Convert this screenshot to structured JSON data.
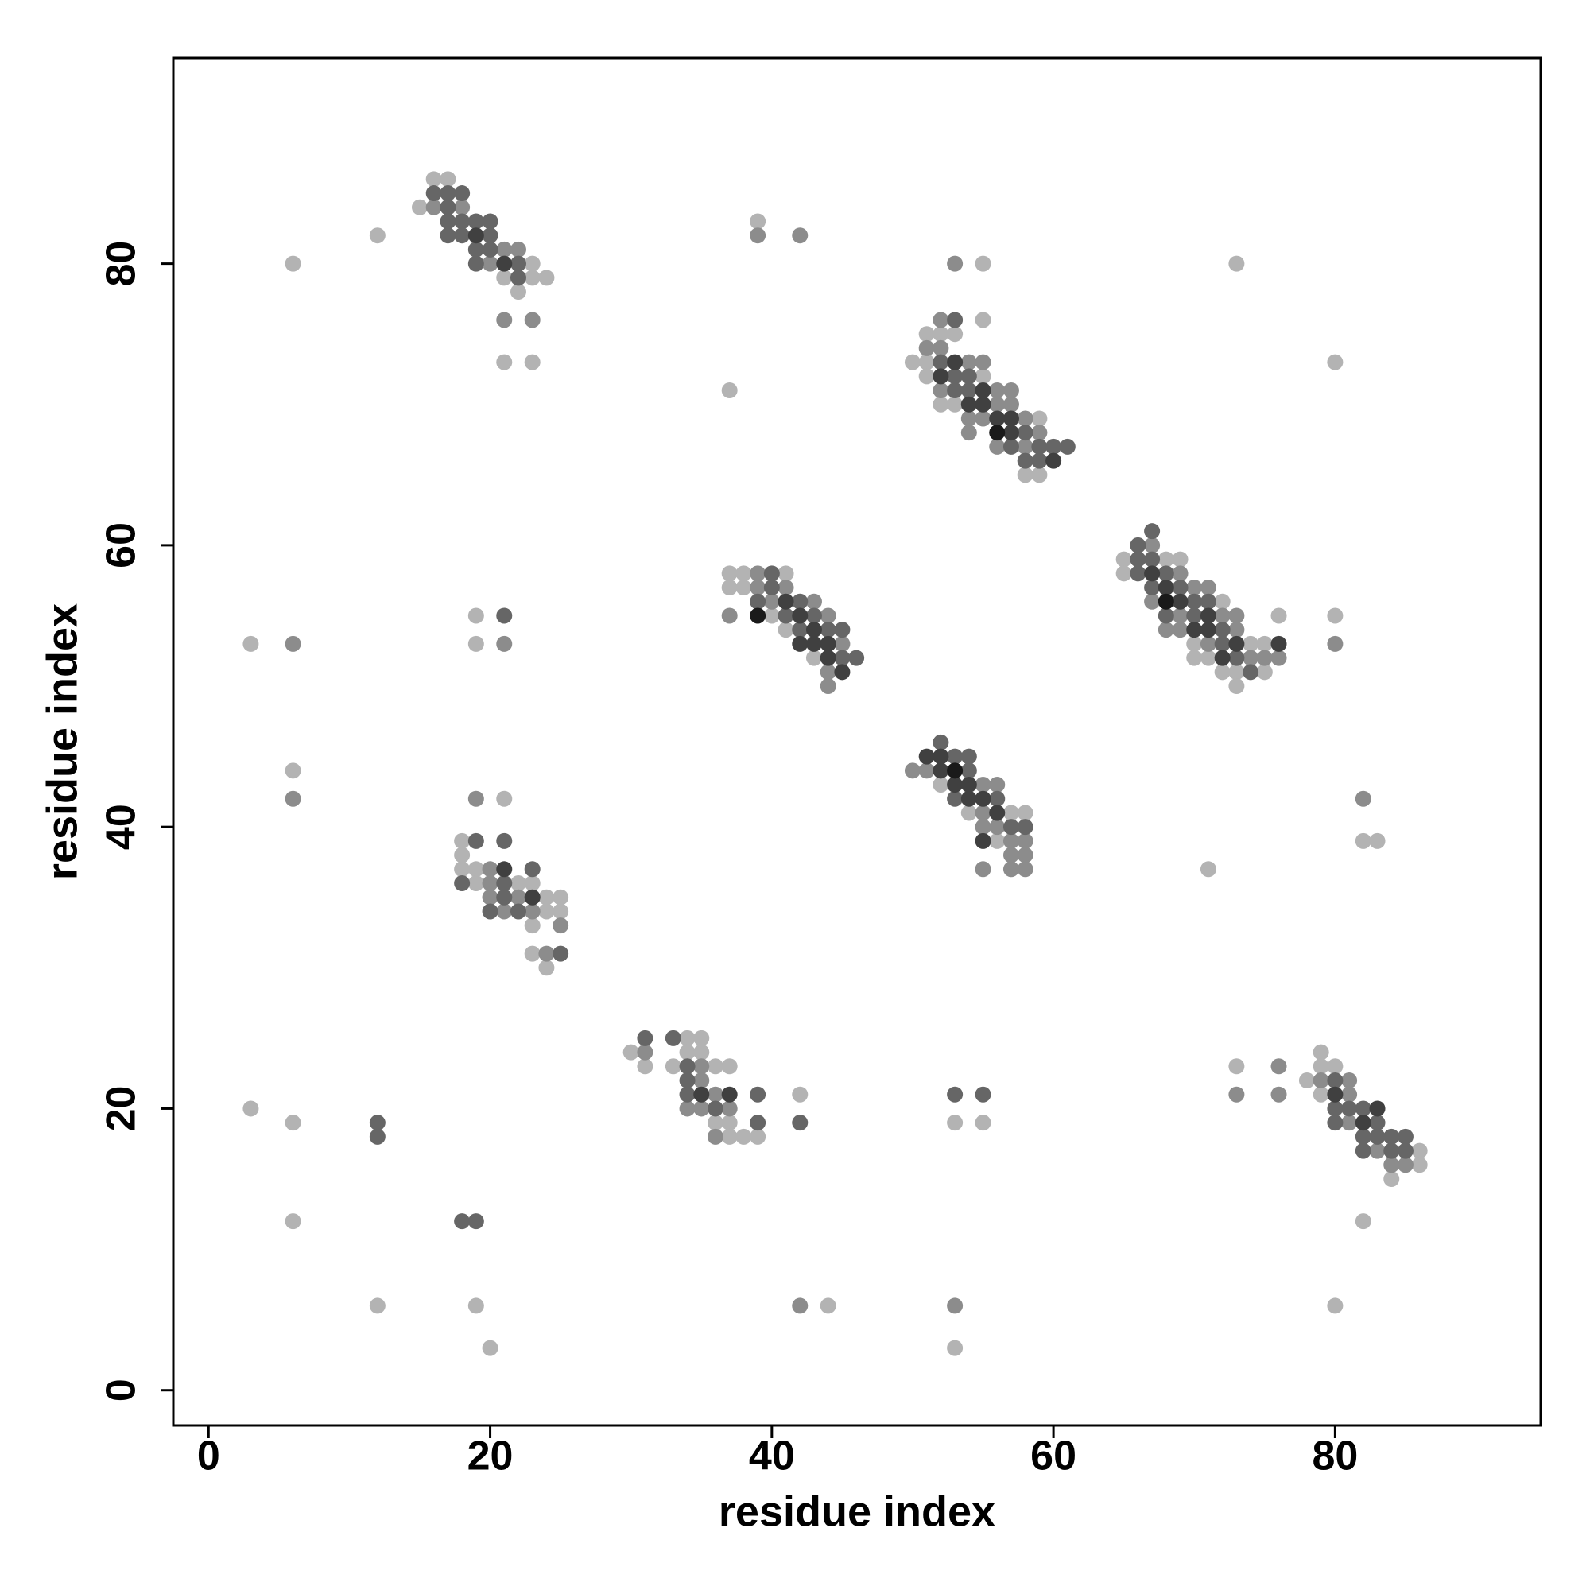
{
  "chart_data": {
    "type": "scatter",
    "x_label": "residue index",
    "y_label": "residue index",
    "xlim": [
      -2.5,
      94.6
    ],
    "ylim": [
      -2.5,
      94.6
    ],
    "xticks": [
      0,
      20,
      40,
      60,
      80
    ],
    "yticks": [
      0,
      20,
      40,
      60,
      80
    ],
    "series": [
      {
        "color": "#b3b3b3",
        "x": [
          6,
          12,
          16,
          17,
          15,
          23,
          21,
          23,
          24,
          22,
          21,
          23,
          39,
          37,
          51,
          52,
          53,
          50,
          51,
          51,
          55,
          52,
          53,
          59,
          58,
          59,
          55,
          55,
          73,
          80,
          65,
          68,
          69,
          65,
          72,
          70,
          74,
          75,
          70,
          71,
          72,
          73,
          75,
          73,
          76,
          80,
          37,
          38,
          41,
          37,
          38,
          40,
          41,
          43,
          3,
          19,
          19,
          6,
          52,
          54,
          57,
          58,
          56,
          82,
          83,
          71,
          21,
          18,
          18,
          18,
          19,
          19,
          22,
          23,
          24,
          25,
          24,
          25,
          23,
          23,
          24,
          34,
          35,
          30,
          34,
          35,
          31,
          33,
          36,
          37,
          36,
          37,
          37,
          38,
          39,
          42,
          53,
          55,
          79,
          79,
          80,
          78,
          79,
          86,
          86,
          84,
          73,
          82,
          3,
          6,
          6,
          12,
          19,
          20,
          44,
          53,
          80
        ],
        "y": [
          80,
          82,
          86,
          86,
          84,
          80,
          79,
          79,
          79,
          78,
          73,
          73,
          83,
          71,
          75,
          75,
          75,
          73,
          73,
          72,
          72,
          70,
          70,
          69,
          65,
          65,
          80,
          76,
          80,
          73,
          59,
          59,
          59,
          58,
          56,
          53,
          53,
          53,
          52,
          52,
          51,
          51,
          51,
          50,
          55,
          55,
          58,
          58,
          58,
          57,
          57,
          55,
          54,
          52,
          53,
          55,
          53,
          44,
          43,
          41,
          41,
          41,
          39,
          39,
          39,
          37,
          42,
          39,
          38,
          37,
          37,
          36,
          36,
          36,
          35,
          35,
          34,
          34,
          33,
          31,
          30,
          25,
          25,
          24,
          24,
          24,
          23,
          23,
          23,
          23,
          19,
          19,
          18,
          18,
          18,
          21,
          19,
          19,
          24,
          23,
          23,
          22,
          21,
          17,
          16,
          15,
          23,
          12,
          20,
          19,
          12,
          6,
          6,
          3,
          6,
          3,
          6
        ]
      },
      {
        "color": "#8c8c8c",
        "x": [
          16,
          18,
          21,
          22,
          20,
          21,
          23,
          39,
          42,
          53,
          52,
          51,
          52,
          54,
          55,
          52,
          56,
          57,
          56,
          57,
          54,
          55,
          58,
          54,
          59,
          56,
          58,
          67,
          69,
          70,
          71,
          67,
          69,
          72,
          73,
          68,
          69,
          73,
          71,
          74,
          75,
          76,
          80,
          39,
          39,
          41,
          40,
          43,
          37,
          44,
          45,
          44,
          44,
          6,
          21,
          6,
          50,
          51,
          55,
          56,
          55,
          55,
          56,
          57,
          58,
          57,
          58,
          55,
          57,
          58,
          82,
          19,
          20,
          20,
          20,
          22,
          21,
          23,
          25,
          24,
          31,
          35,
          35,
          36,
          34,
          35,
          37,
          36,
          79,
          81,
          81,
          81,
          83,
          84,
          85,
          76,
          73,
          76,
          42,
          53
        ],
        "y": [
          84,
          84,
          81,
          81,
          80,
          76,
          76,
          82,
          82,
          80,
          76,
          74,
          74,
          73,
          73,
          71,
          71,
          71,
          70,
          70,
          69,
          69,
          69,
          68,
          68,
          67,
          67,
          60,
          58,
          57,
          57,
          56,
          55,
          55,
          55,
          54,
          54,
          54,
          53,
          52,
          52,
          52,
          53,
          58,
          57,
          57,
          56,
          56,
          55,
          55,
          53,
          51,
          50,
          53,
          53,
          42,
          44,
          44,
          43,
          43,
          41,
          40,
          40,
          39,
          39,
          38,
          38,
          37,
          37,
          37,
          42,
          42,
          37,
          36,
          35,
          35,
          34,
          34,
          33,
          31,
          24,
          23,
          22,
          21,
          20,
          20,
          20,
          18,
          22,
          22,
          21,
          19,
          17,
          16,
          16,
          23,
          21,
          21,
          6,
          6
        ]
      },
      {
        "color": "#666666",
        "x": [
          16,
          17,
          18,
          17,
          17,
          18,
          19,
          20,
          17,
          18,
          20,
          19,
          20,
          19,
          22,
          22,
          53,
          52,
          53,
          54,
          53,
          54,
          58,
          57,
          59,
          60,
          61,
          58,
          59,
          67,
          66,
          66,
          67,
          66,
          68,
          67,
          69,
          70,
          71,
          68,
          70,
          72,
          72,
          73,
          74,
          40,
          40,
          39,
          42,
          41,
          43,
          42,
          44,
          45,
          45,
          46,
          21,
          52,
          53,
          54,
          54,
          53,
          56,
          57,
          58,
          19,
          21,
          23,
          18,
          21,
          21,
          20,
          22,
          25,
          31,
          33,
          34,
          34,
          34,
          39,
          36,
          39,
          42,
          53,
          55,
          80,
          80,
          81,
          82,
          80,
          83,
          82,
          83,
          84,
          85,
          82,
          84,
          85,
          12,
          12,
          18,
          19
        ],
        "y": [
          85,
          85,
          85,
          84,
          83,
          83,
          83,
          83,
          82,
          82,
          82,
          81,
          81,
          80,
          80,
          79,
          76,
          73,
          72,
          72,
          71,
          71,
          68,
          67,
          67,
          67,
          67,
          66,
          66,
          61,
          60,
          59,
          59,
          58,
          58,
          57,
          57,
          56,
          56,
          55,
          55,
          54,
          53,
          52,
          51,
          58,
          57,
          56,
          56,
          55,
          55,
          54,
          54,
          54,
          52,
          52,
          55,
          46,
          45,
          45,
          44,
          42,
          42,
          40,
          40,
          39,
          39,
          37,
          36,
          36,
          35,
          34,
          34,
          31,
          25,
          25,
          23,
          22,
          21,
          21,
          20,
          19,
          19,
          21,
          21,
          22,
          20,
          20,
          20,
          19,
          19,
          18,
          18,
          18,
          18,
          17,
          17,
          17,
          19,
          18,
          12,
          12
        ]
      },
      {
        "color": "#404040",
        "x": [
          19,
          21,
          53,
          52,
          55,
          54,
          55,
          56,
          57,
          57,
          60,
          67,
          68,
          69,
          71,
          70,
          71,
          73,
          76,
          72,
          41,
          42,
          43,
          42,
          43,
          44,
          44,
          45,
          51,
          52,
          52,
          53,
          54,
          54,
          55,
          56,
          55,
          21,
          23,
          35,
          37,
          80,
          83,
          82
        ],
        "y": [
          82,
          80,
          73,
          72,
          71,
          70,
          70,
          69,
          69,
          68,
          66,
          58,
          57,
          56,
          55,
          54,
          54,
          53,
          53,
          52,
          56,
          55,
          54,
          53,
          53,
          53,
          52,
          51,
          45,
          45,
          44,
          43,
          43,
          42,
          42,
          41,
          39,
          37,
          35,
          21,
          21,
          21,
          20,
          19
        ]
      },
      {
        "color": "#1a1a1a",
        "x": [
          56,
          68,
          39,
          53
        ],
        "y": [
          68,
          56,
          55,
          44
        ]
      }
    ]
  }
}
